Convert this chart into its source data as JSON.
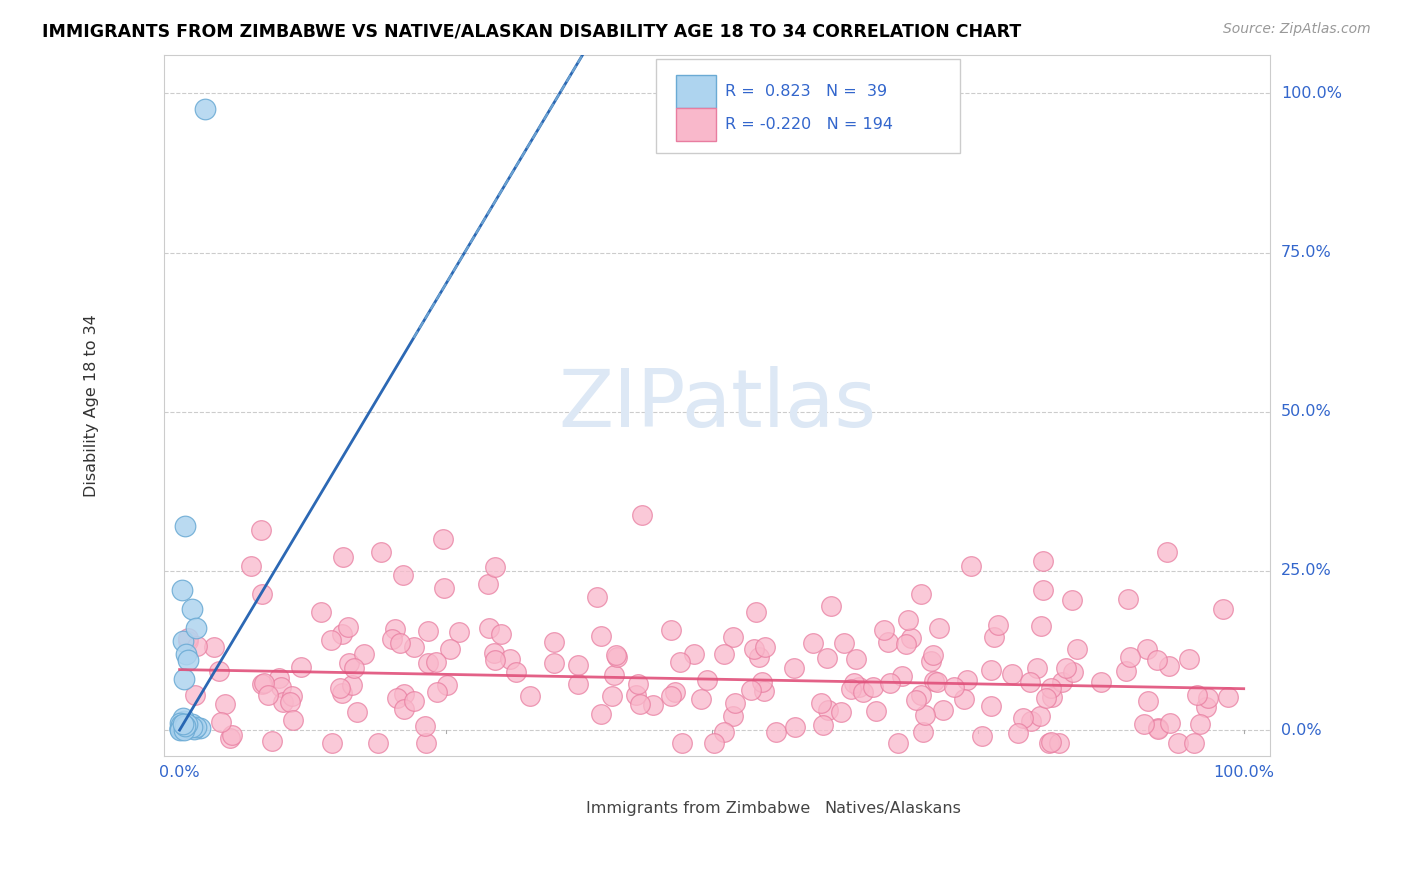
{
  "title": "IMMIGRANTS FROM ZIMBABWE VS NATIVE/ALASKAN DISABILITY AGE 18 TO 34 CORRELATION CHART",
  "source": "Source: ZipAtlas.com",
  "ylabel": "Disability Age 18 to 34",
  "blue_scatter_fill": "#aed4ef",
  "blue_scatter_edge": "#6aaad4",
  "blue_line_color": "#2060b0",
  "blue_dash_color": "#7ab0d8",
  "pink_scatter_fill": "#f9b8cb",
  "pink_scatter_edge": "#e87da0",
  "pink_line_color": "#e0507a",
  "grid_color": "#cccccc",
  "title_color": "#000000",
  "source_color": "#999999",
  "axis_label_color": "#3366cc",
  "ylabel_color": "#333333",
  "watermark_color": "#dde8f5",
  "legend_text_color": "#3366cc",
  "r1": 0.823,
  "n1": 39,
  "r2": -0.22,
  "n2": 194,
  "xlim": [
    0.0,
    1.0
  ],
  "ylim": [
    0.0,
    1.0
  ],
  "yticks": [
    0.0,
    0.25,
    0.5,
    0.75,
    1.0
  ],
  "ytick_labels": [
    "0.0%",
    "25.0%",
    "50.0%",
    "75.0%",
    "100.0%"
  ],
  "xtick_labels_left": "0.0%",
  "xtick_labels_right": "100.0%",
  "bottom_legend_label1": "Immigrants from Zimbabwe",
  "bottom_legend_label2": "Natives/Alaskans"
}
